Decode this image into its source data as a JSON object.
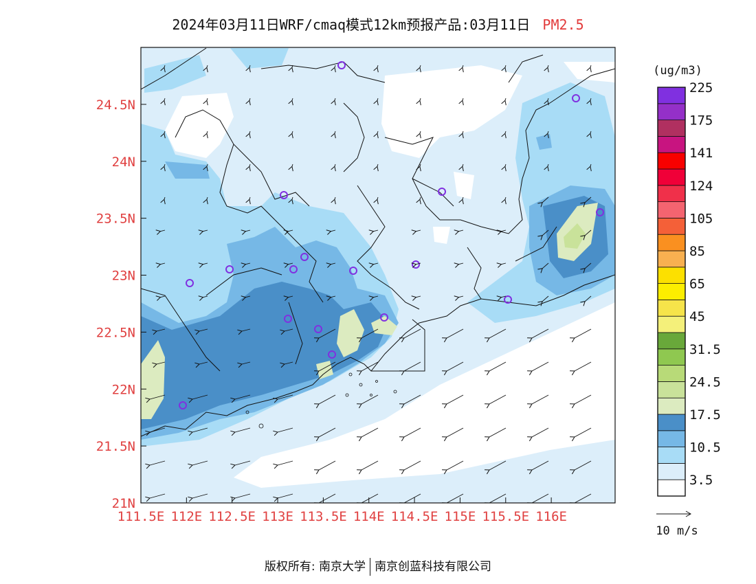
{
  "header": {
    "title": "2024年03月11日WRF/cmaq模式12km预报产品:03月11日",
    "pollutant": "PM2.5"
  },
  "axes": {
    "lon_labels": [
      "111.5E",
      "112E",
      "112.5E",
      "113E",
      "113.5E",
      "114E",
      "114.5E",
      "115E",
      "115.5E",
      "116E"
    ],
    "lon_values": [
      111.5,
      112,
      112.5,
      113,
      113.5,
      114,
      114.5,
      115,
      115.5,
      116
    ],
    "lat_labels": [
      "24.5N",
      "24N",
      "23.5N",
      "23N",
      "22.5N",
      "22N",
      "21.5N",
      "21N"
    ],
    "lat_values": [
      24.5,
      24,
      23.5,
      23,
      22.5,
      22,
      21.5,
      21
    ],
    "lon_range": [
      111.5,
      116.7
    ],
    "lat_range": [
      21.0,
      25.0
    ],
    "label_color": "#e04040"
  },
  "legend": {
    "unit": "(ug/m3)",
    "colors": [
      "#ffffff",
      "#dceefa",
      "#a8dcf6",
      "#76b8e6",
      "#4a8fc8",
      "#dcebc0",
      "#c9e29a",
      "#b8da78",
      "#8fc850",
      "#69a83a",
      "#f4f07a",
      "#f6e44a",
      "#fcee00",
      "#fce000",
      "#f8b050",
      "#fa9020",
      "#f46038",
      "#f46470",
      "#f0304a",
      "#f00038",
      "#f80000",
      "#c81480",
      "#b03060",
      "#9430c8",
      "#8030e0"
    ],
    "labels": [
      "3.5",
      "10.5",
      "17.5",
      "24.5",
      "31.5",
      "45",
      "65",
      "85",
      "105",
      "124",
      "141",
      "175",
      "225"
    ]
  },
  "wind_scale": {
    "label": "10 m/s"
  },
  "footer": {
    "copyright": "版权所有: 南京大学",
    "company": "南京创蓝科技有限公司"
  }
}
